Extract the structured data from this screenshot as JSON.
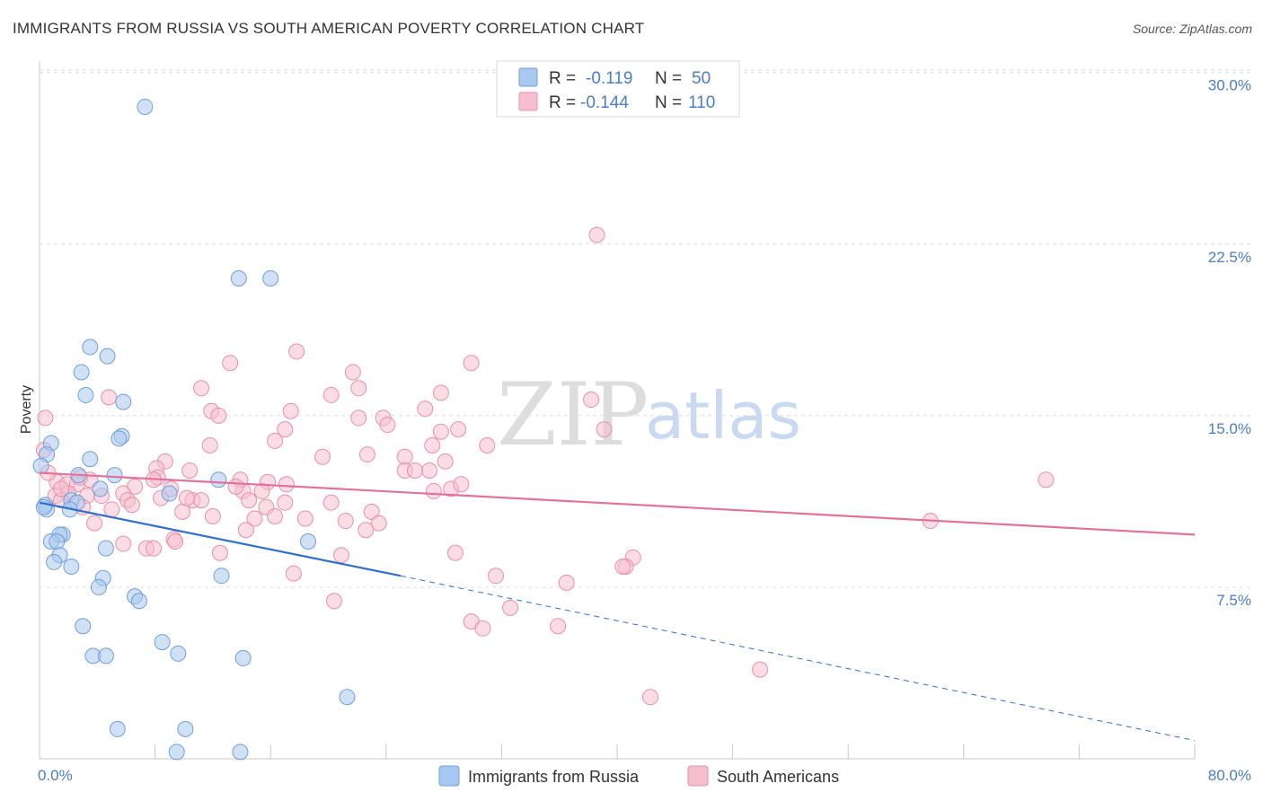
{
  "title": "IMMIGRANTS FROM RUSSIA VS SOUTH AMERICAN POVERTY CORRELATION CHART",
  "source": "Source: ZipAtlas.com",
  "watermark": {
    "zip": "ZIP",
    "atlas": "atlas"
  },
  "colors": {
    "blue_fill": "#a9c8ef",
    "blue_stroke": "#6f9fd8",
    "blue_line": "#2f6fce",
    "pink_fill": "#f6bfd0",
    "pink_stroke": "#e98fab",
    "pink_line": "#e3719a",
    "tick": "#4a7cc9",
    "grid": "#dcdcdc"
  },
  "legend": {
    "r_label": "R =",
    "n_label": "N =",
    "rows": [
      {
        "r": "-0.119",
        "n": "50"
      },
      {
        "r": "-0.144",
        "n": "110"
      }
    ]
  },
  "chart_data": {
    "type": "scatter",
    "title": "IMMIGRANTS FROM RUSSIA VS SOUTH AMERICAN POVERTY CORRELATION CHART",
    "xlabel": "",
    "ylabel": "Poverty",
    "xlim": [
      0,
      80
    ],
    "ylim": [
      0,
      30.5
    ],
    "x_tick_labels": [
      "0.0%",
      "80.0%"
    ],
    "y_ticks": [
      7.5,
      15.0,
      22.5,
      30.0
    ],
    "y_tick_labels": [
      "7.5%",
      "15.0%",
      "22.5%",
      "30.0%"
    ],
    "grid": true,
    "legend_position": "top-center",
    "series": [
      {
        "name": "Immigrants from Russia",
        "color": "blue",
        "trend": {
          "x0": 0,
          "y0": 11.2,
          "x1": 25,
          "y1": 8.0,
          "dash_to_x": 80,
          "dash_to_y": 0.8
        },
        "points": [
          [
            7.3,
            28.5
          ],
          [
            13.8,
            21.0
          ],
          [
            16.0,
            21.0
          ],
          [
            3.5,
            18.0
          ],
          [
            4.7,
            17.6
          ],
          [
            2.9,
            16.9
          ],
          [
            3.2,
            15.9
          ],
          [
            5.8,
            15.6
          ],
          [
            5.7,
            14.1
          ],
          [
            5.5,
            14.0
          ],
          [
            0.8,
            13.8
          ],
          [
            0.5,
            13.3
          ],
          [
            3.5,
            13.1
          ],
          [
            2.7,
            12.4
          ],
          [
            5.2,
            12.4
          ],
          [
            12.4,
            12.2
          ],
          [
            4.2,
            11.8
          ],
          [
            9.0,
            11.6
          ],
          [
            2.2,
            11.3
          ],
          [
            2.6,
            11.2
          ],
          [
            0.4,
            11.1
          ],
          [
            0.5,
            10.9
          ],
          [
            2.1,
            10.9
          ],
          [
            1.6,
            9.8
          ],
          [
            1.4,
            9.8
          ],
          [
            0.8,
            9.5
          ],
          [
            1.2,
            9.5
          ],
          [
            18.6,
            9.5
          ],
          [
            4.6,
            9.2
          ],
          [
            1.4,
            8.9
          ],
          [
            1.0,
            8.6
          ],
          [
            2.2,
            8.4
          ],
          [
            4.4,
            7.9
          ],
          [
            12.6,
            8.0
          ],
          [
            4.1,
            7.5
          ],
          [
            6.6,
            7.1
          ],
          [
            6.9,
            6.9
          ],
          [
            3.0,
            5.8
          ],
          [
            8.5,
            5.1
          ],
          [
            9.6,
            4.6
          ],
          [
            3.7,
            4.5
          ],
          [
            4.6,
            4.5
          ],
          [
            14.1,
            4.4
          ],
          [
            21.3,
            2.7
          ],
          [
            5.4,
            1.3
          ],
          [
            10.1,
            1.3
          ],
          [
            9.5,
            0.3
          ],
          [
            13.9,
            0.3
          ],
          [
            0.1,
            12.8
          ],
          [
            0.3,
            11.0
          ]
        ]
      },
      {
        "name": "South Americans",
        "color": "pink",
        "trend": {
          "x0": 0,
          "y0": 12.5,
          "x1": 80,
          "y1": 9.8
        },
        "points": [
          [
            38.6,
            22.9
          ],
          [
            17.8,
            17.8
          ],
          [
            29.9,
            17.3
          ],
          [
            13.2,
            17.3
          ],
          [
            21.7,
            16.9
          ],
          [
            11.2,
            16.2
          ],
          [
            22.1,
            16.2
          ],
          [
            27.8,
            16.0
          ],
          [
            20.2,
            15.9
          ],
          [
            4.8,
            15.8
          ],
          [
            38.2,
            15.7
          ],
          [
            11.9,
            15.2
          ],
          [
            26.7,
            15.3
          ],
          [
            17.4,
            15.2
          ],
          [
            12.4,
            15.0
          ],
          [
            22.1,
            14.9
          ],
          [
            23.8,
            14.9
          ],
          [
            24.1,
            14.6
          ],
          [
            17.0,
            14.4
          ],
          [
            29.0,
            14.4
          ],
          [
            27.8,
            14.3
          ],
          [
            39.1,
            14.4
          ],
          [
            16.3,
            13.9
          ],
          [
            11.8,
            13.7
          ],
          [
            31.0,
            13.7
          ],
          [
            27.2,
            13.7
          ],
          [
            0.3,
            13.5
          ],
          [
            8.7,
            13.0
          ],
          [
            19.6,
            13.2
          ],
          [
            22.7,
            13.3
          ],
          [
            25.3,
            13.2
          ],
          [
            8.1,
            12.7
          ],
          [
            25.3,
            12.6
          ],
          [
            27.0,
            12.6
          ],
          [
            26.0,
            12.6
          ],
          [
            28.1,
            13.0
          ],
          [
            10.4,
            12.6
          ],
          [
            8.2,
            12.3
          ],
          [
            3.5,
            12.2
          ],
          [
            13.9,
            12.2
          ],
          [
            15.8,
            12.1
          ],
          [
            17.1,
            12.0
          ],
          [
            6.6,
            11.9
          ],
          [
            1.2,
            12.1
          ],
          [
            1.9,
            12.0
          ],
          [
            2.6,
            12.0
          ],
          [
            28.5,
            11.8
          ],
          [
            14.1,
            11.7
          ],
          [
            29.2,
            12.0
          ],
          [
            27.3,
            11.7
          ],
          [
            9.1,
            11.8
          ],
          [
            15.4,
            11.7
          ],
          [
            5.8,
            11.6
          ],
          [
            1.1,
            11.5
          ],
          [
            2.0,
            11.6
          ],
          [
            3.3,
            11.5
          ],
          [
            10.6,
            11.3
          ],
          [
            8.4,
            11.4
          ],
          [
            6.1,
            11.3
          ],
          [
            11.2,
            11.3
          ],
          [
            14.5,
            11.3
          ],
          [
            20.2,
            11.2
          ],
          [
            17.0,
            11.2
          ],
          [
            1.5,
            11.3
          ],
          [
            3.0,
            11.0
          ],
          [
            5.0,
            10.9
          ],
          [
            6.4,
            11.1
          ],
          [
            9.9,
            10.8
          ],
          [
            15.7,
            11.0
          ],
          [
            23.0,
            10.8
          ],
          [
            12.0,
            10.6
          ],
          [
            16.3,
            10.6
          ],
          [
            18.4,
            10.5
          ],
          [
            21.2,
            10.4
          ],
          [
            14.9,
            10.5
          ],
          [
            23.5,
            10.3
          ],
          [
            3.8,
            10.3
          ],
          [
            22.6,
            10.0
          ],
          [
            14.3,
            10.0
          ],
          [
            9.3,
            9.6
          ],
          [
            9.4,
            9.5
          ],
          [
            5.8,
            9.4
          ],
          [
            7.4,
            9.2
          ],
          [
            7.9,
            9.2
          ],
          [
            12.5,
            9.0
          ],
          [
            20.9,
            8.9
          ],
          [
            28.8,
            9.0
          ],
          [
            41.1,
            8.8
          ],
          [
            40.6,
            8.4
          ],
          [
            40.4,
            8.4
          ],
          [
            17.6,
            8.1
          ],
          [
            31.6,
            8.0
          ],
          [
            36.5,
            7.7
          ],
          [
            20.4,
            6.9
          ],
          [
            32.6,
            6.6
          ],
          [
            29.9,
            6.0
          ],
          [
            35.9,
            5.8
          ],
          [
            30.7,
            5.7
          ],
          [
            49.9,
            3.9
          ],
          [
            42.3,
            2.7
          ],
          [
            69.7,
            12.2
          ],
          [
            61.7,
            10.4
          ],
          [
            0.4,
            14.9
          ],
          [
            0.6,
            12.5
          ],
          [
            1.5,
            11.8
          ],
          [
            2.8,
            12.3
          ],
          [
            4.3,
            11.5
          ],
          [
            7.9,
            12.2
          ],
          [
            10.2,
            11.4
          ],
          [
            13.6,
            11.9
          ]
        ]
      }
    ]
  },
  "bottom_legend": {
    "items": [
      {
        "label": "Immigrants from Russia"
      },
      {
        "label": "South Americans"
      }
    ]
  }
}
